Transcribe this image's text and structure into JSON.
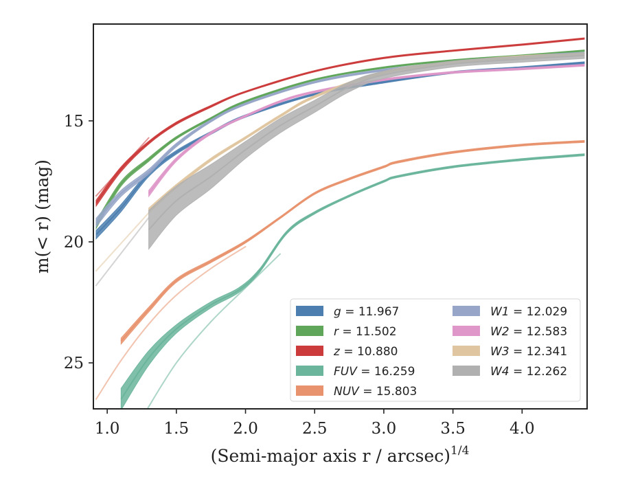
{
  "chart_data": {
    "type": "line",
    "title": "",
    "xlabel": "(Semi-major axis r / arcsec)",
    "xlabel_sup": "1/4",
    "ylabel": "m(< r) (mag)",
    "xlim": [
      0.9,
      4.47
    ],
    "ylim": [
      26.9,
      11.0
    ],
    "y_inverted": true,
    "grid": false,
    "legend_position": "lower-right",
    "xticks": [
      1.0,
      1.5,
      2.0,
      2.5,
      3.0,
      3.5,
      4.0
    ],
    "xtick_labels": [
      "1.0",
      "1.5",
      "2.0",
      "2.5",
      "3.0",
      "3.5",
      "4.0"
    ],
    "yticks": [
      15,
      20,
      25
    ],
    "ytick_labels": [
      "15",
      "20",
      "25"
    ],
    "series": [
      {
        "name": "g = 11.967",
        "label_var": "g",
        "label_val": "11.967",
        "color": "#4c7fb0",
        "x": [
          0.92,
          1.1,
          1.3,
          1.5,
          1.75,
          2.0,
          2.5,
          3.0,
          3.5,
          4.0,
          4.45
        ],
        "y": [
          19.7,
          18.6,
          17.2,
          16.3,
          15.5,
          14.8,
          13.9,
          13.4,
          13.0,
          12.8,
          12.6
        ],
        "band": [
          0.35,
          0.3,
          0.2,
          0.15,
          0.12,
          0.1,
          0.08,
          0.08,
          0.08,
          0.08,
          0.08
        ]
      },
      {
        "name": "r = 11.502",
        "label_var": "r",
        "label_val": "11.502",
        "color": "#5fa65a",
        "x": [
          0.92,
          1.1,
          1.3,
          1.5,
          1.75,
          2.0,
          2.5,
          3.0,
          3.5,
          4.0,
          4.45
        ],
        "y": [
          19.3,
          17.6,
          16.6,
          15.7,
          14.9,
          14.2,
          13.3,
          12.8,
          12.5,
          12.3,
          12.1
        ],
        "band": [
          0.3,
          0.2,
          0.15,
          0.1,
          0.08,
          0.08,
          0.06,
          0.06,
          0.06,
          0.06,
          0.06
        ]
      },
      {
        "name": "z = 10.880",
        "label_var": "z",
        "label_val": "10.880",
        "color": "#cc3b3b",
        "x": [
          0.92,
          1.1,
          1.3,
          1.5,
          1.75,
          2.0,
          2.5,
          3.0,
          3.5,
          4.0,
          4.45
        ],
        "y": [
          18.4,
          17.0,
          15.9,
          15.1,
          14.4,
          13.8,
          12.95,
          12.4,
          12.1,
          11.85,
          11.6
        ],
        "band": [
          0.25,
          0.2,
          0.12,
          0.1,
          0.08,
          0.06,
          0.06,
          0.06,
          0.06,
          0.06,
          0.06
        ]
      },
      {
        "name": "FUV = 16.259",
        "label_var": "FUV",
        "label_val": "16.259",
        "color": "#6ab59c",
        "x": [
          1.1,
          1.3,
          1.5,
          1.75,
          1.95,
          2.1,
          2.3,
          2.5,
          2.75,
          3.0,
          3.1,
          3.5,
          4.0,
          4.45
        ],
        "y": [
          26.5,
          24.8,
          23.6,
          22.6,
          22.0,
          21.2,
          19.6,
          18.8,
          18.1,
          17.5,
          17.3,
          16.9,
          16.6,
          16.4
        ],
        "band": [
          0.9,
          0.6,
          0.35,
          0.25,
          0.2,
          0.15,
          0.12,
          0.1,
          0.08,
          0.08,
          0.08,
          0.08,
          0.08,
          0.08
        ]
      },
      {
        "name": "NUV = 15.803",
        "label_var": "NUV",
        "label_val": "15.803",
        "color": "#e8936e",
        "x": [
          1.1,
          1.3,
          1.5,
          1.75,
          2.0,
          2.25,
          2.5,
          2.75,
          3.0,
          3.1,
          3.5,
          4.0,
          4.45
        ],
        "y": [
          24.1,
          22.8,
          21.6,
          20.8,
          20.0,
          19.0,
          18.0,
          17.4,
          16.9,
          16.7,
          16.3,
          16.0,
          15.85
        ],
        "band": [
          0.25,
          0.2,
          0.15,
          0.12,
          0.1,
          0.08,
          0.08,
          0.08,
          0.08,
          0.08,
          0.08,
          0.08,
          0.08
        ]
      },
      {
        "name": "W1 = 12.029",
        "label_var": "W1",
        "label_val": "12.029",
        "color": "#97a6c8",
        "x": [
          0.92,
          1.1,
          1.3,
          1.5,
          1.75,
          2.0,
          2.5,
          3.0,
          3.5,
          4.0,
          4.45
        ],
        "y": [
          19.2,
          18.0,
          17.1,
          16.0,
          15.0,
          14.3,
          13.4,
          12.9,
          12.6,
          12.35,
          12.2
        ],
        "band": [
          0.35,
          0.25,
          0.2,
          0.15,
          0.1,
          0.08,
          0.08,
          0.08,
          0.08,
          0.08,
          0.08
        ]
      },
      {
        "name": "W2 = 12.583",
        "label_var": "W2",
        "label_val": "12.583",
        "color": "#de97c8",
        "x": [
          1.3,
          1.5,
          1.75,
          2.0,
          2.25,
          2.5,
          3.0,
          3.5,
          4.0,
          4.45
        ],
        "y": [
          18.0,
          16.6,
          15.5,
          14.8,
          14.2,
          13.8,
          13.3,
          13.0,
          12.85,
          12.7
        ],
        "band": [
          0.25,
          0.15,
          0.1,
          0.08,
          0.08,
          0.08,
          0.08,
          0.08,
          0.08,
          0.08
        ]
      },
      {
        "name": "W3 = 12.341",
        "label_var": "W3",
        "label_val": "12.341",
        "color": "#e0c6a0",
        "x": [
          1.3,
          1.5,
          1.75,
          2.0,
          2.25,
          2.5,
          3.0,
          3.5,
          4.0,
          4.45
        ],
        "y": [
          18.7,
          17.7,
          16.6,
          15.7,
          14.8,
          14.0,
          13.0,
          12.6,
          12.35,
          12.25
        ],
        "band": [
          0.2,
          0.15,
          0.12,
          0.1,
          0.1,
          0.1,
          0.1,
          0.1,
          0.1,
          0.1
        ]
      },
      {
        "name": "W4 = 12.262",
        "label_var": "W4",
        "label_val": "12.262",
        "color": "#b0b0b0",
        "x": [
          1.3,
          1.5,
          1.75,
          2.0,
          2.25,
          2.5,
          2.75,
          3.0,
          3.5,
          4.0,
          4.45
        ],
        "y": [
          19.5,
          18.3,
          17.3,
          16.2,
          15.2,
          14.4,
          13.6,
          13.1,
          12.65,
          12.45,
          12.3
        ],
        "band": [
          1.6,
          1.2,
          1.0,
          0.7,
          0.6,
          0.5,
          0.4,
          0.3,
          0.25,
          0.25,
          0.25
        ]
      }
    ],
    "faded_extensions": [
      {
        "series": "z = 10.880",
        "x": [
          0.92,
          1.3
        ],
        "y": [
          18.1,
          15.7
        ]
      },
      {
        "series": "W3 = 12.341",
        "x": [
          0.92,
          1.3
        ],
        "y": [
          21.2,
          18.8
        ]
      },
      {
        "series": "W4 = 12.262",
        "x": [
          0.92,
          1.3
        ],
        "y": [
          21.8,
          19.0
        ]
      },
      {
        "series": "FUV = 16.259",
        "x": [
          1.28,
          1.5,
          1.75,
          2.0,
          2.25
        ],
        "y": [
          27.0,
          25.0,
          23.3,
          21.9,
          20.5
        ]
      },
      {
        "series": "NUV = 15.803",
        "x": [
          0.92,
          1.1,
          1.3,
          1.5,
          1.75,
          2.0
        ],
        "y": [
          26.5,
          24.9,
          23.4,
          22.2,
          21.1,
          20.2
        ]
      }
    ]
  }
}
